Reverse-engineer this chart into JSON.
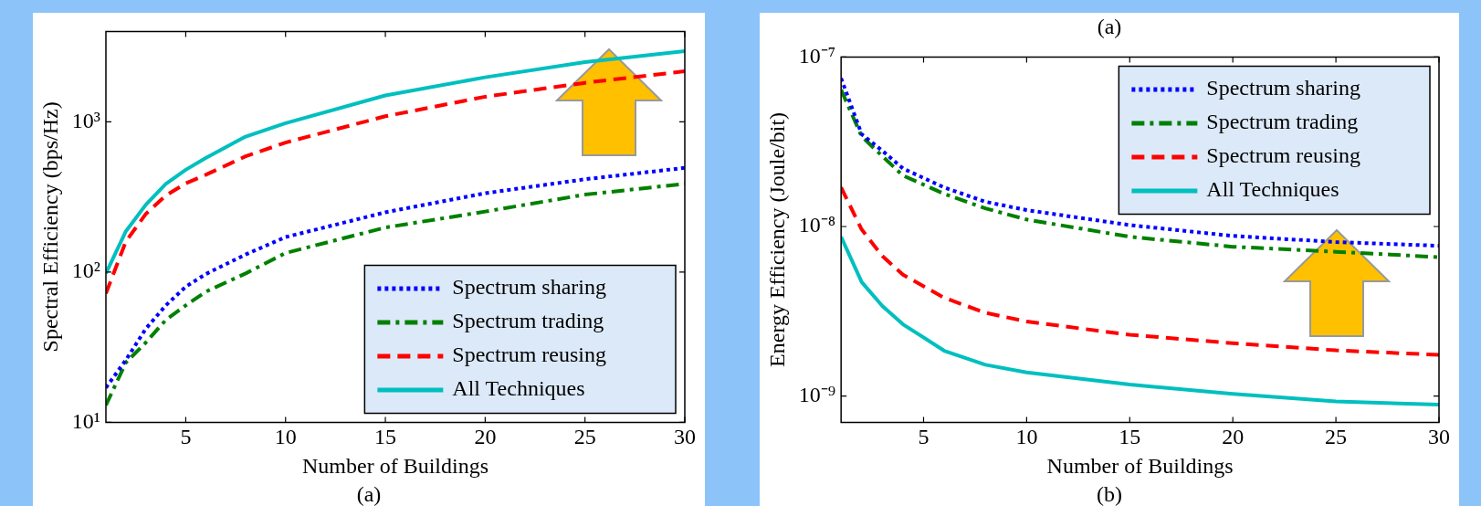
{
  "chart_data": [
    {
      "type": "line",
      "xlabel": "Number of Buildings",
      "ylabel": "Spectral Efficiency (bps/Hz)",
      "annotations": [
        "(a)"
      ],
      "x": [
        1,
        2,
        3,
        4,
        5,
        6,
        8,
        10,
        15,
        20,
        25,
        30
      ],
      "xlim": [
        1,
        30
      ],
      "xticks": [
        5,
        10,
        15,
        20,
        25,
        30
      ],
      "ylim": [
        10,
        4000
      ],
      "yticks": [
        {
          "value": 10,
          "label": "10¹"
        },
        {
          "value": 100,
          "label": "10²"
        },
        {
          "value": 1000,
          "label": "10³"
        }
      ],
      "log": "y",
      "grid": false,
      "legend": "bottom right",
      "marker": "none",
      "series": [
        {
          "name": "Spectrum sharing",
          "color": "#0000ff",
          "line_style": "dotted",
          "values": [
            17,
            26,
            42,
            60,
            80,
            97,
            131,
            171,
            250,
            335,
            415,
            494
          ]
        },
        {
          "name": "Spectrum trading",
          "color": "#008000",
          "line_style": "dashdot",
          "values": [
            13,
            25,
            34,
            48,
            60,
            74,
            98,
            134,
            198,
            253,
            328,
            387
          ]
        },
        {
          "name": "Spectrum reusing",
          "color": "#ff0000",
          "line_style": "dashed",
          "values": [
            72,
            160,
            244,
            323,
            390,
            444,
            590,
            728,
            1090,
            1470,
            1820,
            2170
          ]
        },
        {
          "name": "All Techniques",
          "color": "#00bfbf",
          "line_style": "solid",
          "values": [
            98,
            187,
            281,
            386,
            480,
            575,
            798,
            980,
            1500,
            1980,
            2500,
            2960
          ]
        }
      ]
    },
    {
      "type": "line",
      "title": "(a)",
      "xlabel": "Number of Buildings",
      "ylabel": "Energy Efficiency (Joule/bit)",
      "annotations": [
        "(b)"
      ],
      "x": [
        1,
        2,
        3,
        4,
        6,
        8,
        10,
        15,
        20,
        25,
        30
      ],
      "xlim": [
        1,
        30
      ],
      "xticks": [
        5,
        10,
        15,
        20,
        25,
        30
      ],
      "ylim": [
        7e-10,
        1e-07
      ],
      "yticks": [
        {
          "value": 1e-09,
          "label": "10⁻⁹"
        },
        {
          "value": 1e-08,
          "label": "10⁻⁸"
        },
        {
          "value": 1e-07,
          "label": "10⁻⁷"
        }
      ],
      "log": "y",
      "grid": false,
      "legend": "top right",
      "marker": "none",
      "series": [
        {
          "name": "Spectrum sharing",
          "color": "#0000ff",
          "line_style": "dotted",
          "values": [
            7.5e-08,
            3.5e-08,
            2.8e-08,
            2.2e-08,
            1.7e-08,
            1.4e-08,
            1.25e-08,
            1.02e-08,
            8.8e-09,
            8.1e-09,
            7.7e-09
          ]
        },
        {
          "name": "Spectrum trading",
          "color": "#008000",
          "line_style": "dashdot",
          "values": [
            6.4e-08,
            3.4e-08,
            2.6e-08,
            2e-08,
            1.56e-08,
            1.28e-08,
            1.1e-08,
            8.7e-09,
            7.6e-09,
            7.1e-09,
            6.6e-09
          ]
        },
        {
          "name": "Spectrum reusing",
          "color": "#ff0000",
          "line_style": "dashed",
          "values": [
            1.7e-08,
            9.6e-09,
            6.7e-09,
            5.2e-09,
            3.8e-09,
            3.1e-09,
            2.75e-09,
            2.3e-09,
            2.05e-09,
            1.86e-09,
            1.75e-09
          ]
        },
        {
          "name": "All Techniques",
          "color": "#00bfbf",
          "line_style": "solid",
          "values": [
            8.7e-09,
            4.7e-09,
            3.4e-09,
            2.65e-09,
            1.85e-09,
            1.53e-09,
            1.38e-09,
            1.17e-09,
            1.03e-09,
            9.3e-10,
            8.9e-10
          ]
        }
      ]
    }
  ]
}
